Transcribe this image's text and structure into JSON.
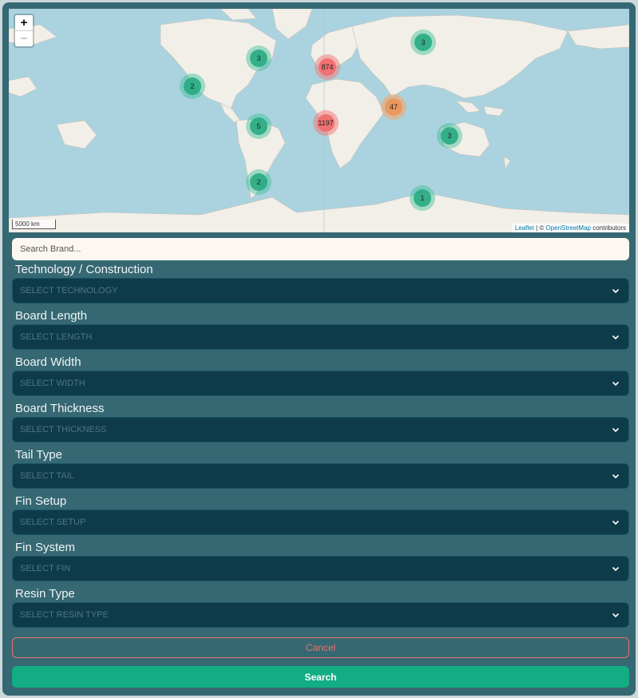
{
  "map": {
    "zoom_in": "+",
    "zoom_out": "−",
    "scale_label": "5000 km",
    "attribution": {
      "leaflet": "Leaflet",
      "separator": " | © ",
      "osm": "OpenStreetMap",
      "suffix": " contributors"
    },
    "clusters": [
      {
        "count": "3",
        "color": "green"
      },
      {
        "count": "874",
        "color": "red"
      },
      {
        "count": "3",
        "color": "green"
      },
      {
        "count": "2",
        "color": "green"
      },
      {
        "count": "47",
        "color": "orange"
      },
      {
        "count": "5",
        "color": "green"
      },
      {
        "count": "1197",
        "color": "red"
      },
      {
        "count": "3",
        "color": "green"
      },
      {
        "count": "2",
        "color": "green"
      },
      {
        "count": "1",
        "color": "green"
      }
    ]
  },
  "search": {
    "placeholder": "Search Brand..."
  },
  "filters": [
    {
      "label": "Technology / Construction",
      "placeholder": "SELECT TECHNOLOGY"
    },
    {
      "label": "Board Length",
      "placeholder": "SELECT LENGTH"
    },
    {
      "label": "Board Width",
      "placeholder": "SELECT WIDTH"
    },
    {
      "label": "Board Thickness",
      "placeholder": "SELECT THICKNESS"
    },
    {
      "label": "Tail Type",
      "placeholder": "SELECT TAIL"
    },
    {
      "label": "Fin Setup",
      "placeholder": "SELECT SETUP"
    },
    {
      "label": "Fin System",
      "placeholder": "SELECT FIN"
    },
    {
      "label": "Resin Type",
      "placeholder": "SELECT RESIN TYPE"
    }
  ],
  "buttons": {
    "cancel": "Cancel",
    "search": "Search"
  },
  "colors": {
    "panel": "#356873",
    "select_bg": "#0e3b4a",
    "cancel": "#e8726b",
    "search": "#12ad83",
    "water": "#aad3df",
    "land": "#f2efe9"
  }
}
